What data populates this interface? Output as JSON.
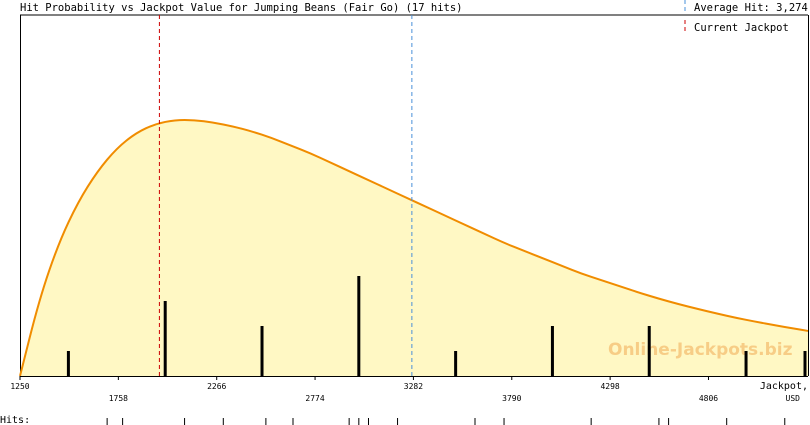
{
  "chart_data": {
    "type": "area",
    "title": "Hit Probability vs Jackpot Value for Jumping Beans (Fair Go) (17 hits)",
    "xlabel": "Jackpot,",
    "xunit": "USD",
    "xlim": [
      1250,
      5320
    ],
    "x_ticks": [
      1250,
      1758,
      2266,
      2774,
      3282,
      3790,
      4298,
      4806
    ],
    "curve": {
      "x": [
        1250,
        1350,
        1450,
        1550,
        1650,
        1750,
        1850,
        1950,
        2050,
        2150,
        2250,
        2350,
        2450,
        2550,
        2650,
        2750,
        2850,
        2950,
        3050,
        3150,
        3250,
        3350,
        3450,
        3550,
        3650,
        3750,
        3850,
        3950,
        4050,
        4150,
        4250,
        4350,
        4450,
        4550,
        4650,
        4750,
        4850,
        4950,
        5050,
        5150,
        5250,
        5320
      ],
      "y": [
        0,
        0.3,
        0.52,
        0.68,
        0.8,
        0.89,
        0.95,
        0.985,
        1.0,
        1.0,
        0.99,
        0.975,
        0.955,
        0.93,
        0.9,
        0.87,
        0.835,
        0.8,
        0.765,
        0.73,
        0.695,
        0.66,
        0.625,
        0.59,
        0.555,
        0.52,
        0.49,
        0.46,
        0.43,
        0.4,
        0.375,
        0.35,
        0.325,
        0.302,
        0.281,
        0.262,
        0.244,
        0.227,
        0.212,
        0.198,
        0.185,
        0.176
      ]
    },
    "hits": {
      "x": [
        1500,
        2000,
        2500,
        3000,
        3500,
        4000,
        4500,
        5000,
        5320
      ],
      "count": [
        1,
        3,
        2,
        4,
        1,
        2,
        2,
        1,
        1
      ]
    },
    "hit_ticks_x": [
      1700,
      1780,
      2100,
      2300,
      2520,
      2660,
      2950,
      3000,
      3050,
      3200,
      3600,
      3750,
      4200,
      4550,
      4600,
      4900,
      5200
    ],
    "average_hit": 3274,
    "current_jackpot": 1970,
    "legend": {
      "average": "Average Hit: 3,274",
      "current": "Current Jackpot"
    },
    "watermark": "Online-Jackpots.biz",
    "hits_label": "Hits:",
    "colors": {
      "fill": "#fff8c4",
      "curve": "#f08c00",
      "average_line": "#4a90d9",
      "current_line": "#cc0000",
      "bars": "#000000"
    }
  }
}
